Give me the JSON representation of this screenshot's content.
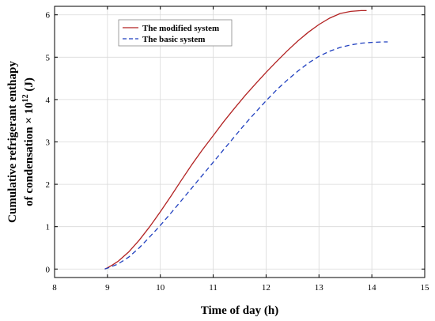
{
  "chart_data": {
    "type": "line",
    "title": "",
    "xlabel": "Time of day (h)",
    "ylabel_line1": "Cumulative refrigerant enthapy",
    "ylabel_line2_prefix": "of condensation  × 10",
    "ylabel_line2_exp": "12",
    "ylabel_line2_suffix": " (J)",
    "xlim": [
      8,
      15
    ],
    "ylim": [
      -0.2,
      6.2
    ],
    "xticks": [
      8,
      9,
      10,
      11,
      12,
      13,
      14,
      15
    ],
    "yticks": [
      0,
      1,
      2,
      3,
      4,
      5,
      6
    ],
    "grid": true,
    "legend_position": "top-left",
    "series": [
      {
        "name": "The  modified system",
        "color": "#b22222",
        "dash": "solid",
        "x": [
          8.95,
          9.0,
          9.1,
          9.2,
          9.4,
          9.6,
          9.8,
          10.0,
          10.2,
          10.4,
          10.6,
          10.8,
          11.0,
          11.2,
          11.4,
          11.6,
          11.8,
          12.0,
          12.2,
          12.4,
          12.6,
          12.8,
          13.0,
          13.2,
          13.4,
          13.6,
          13.8,
          13.9
        ],
        "y": [
          0.0,
          0.03,
          0.1,
          0.18,
          0.4,
          0.68,
          1.0,
          1.35,
          1.72,
          2.1,
          2.47,
          2.82,
          3.15,
          3.48,
          3.79,
          4.09,
          4.37,
          4.64,
          4.9,
          5.15,
          5.38,
          5.59,
          5.77,
          5.92,
          6.03,
          6.08,
          6.1,
          6.1
        ]
      },
      {
        "name": "The  basic system",
        "color": "#1f3fbf",
        "dash": "dashed",
        "x": [
          8.95,
          9.0,
          9.2,
          9.4,
          9.6,
          9.8,
          10.0,
          10.2,
          10.4,
          10.6,
          10.8,
          11.0,
          11.2,
          11.4,
          11.6,
          11.8,
          12.0,
          12.2,
          12.4,
          12.6,
          12.8,
          13.0,
          13.2,
          13.4,
          13.6,
          13.8,
          14.0,
          14.2,
          14.3
        ],
        "y": [
          0.0,
          0.02,
          0.12,
          0.28,
          0.5,
          0.76,
          1.03,
          1.32,
          1.62,
          1.92,
          2.22,
          2.52,
          2.82,
          3.12,
          3.42,
          3.7,
          3.97,
          4.23,
          4.46,
          4.67,
          4.86,
          5.02,
          5.14,
          5.23,
          5.29,
          5.33,
          5.35,
          5.36,
          5.36
        ]
      }
    ]
  }
}
